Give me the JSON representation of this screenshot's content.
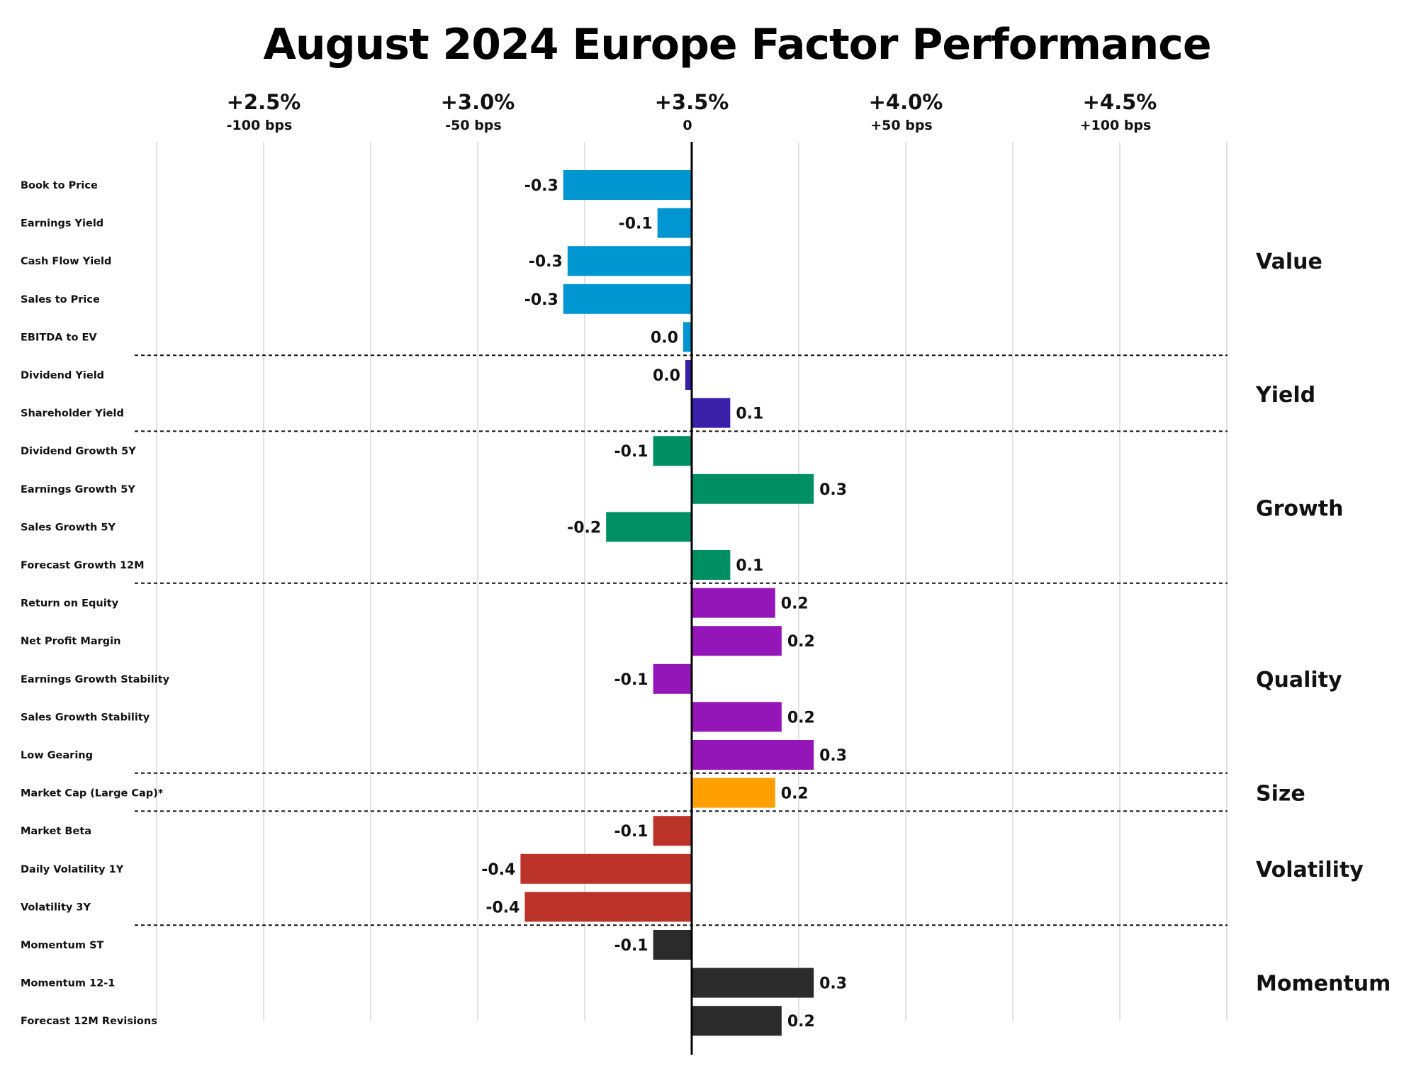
{
  "chart_data": {
    "type": "bar",
    "orientation": "horizontal",
    "title": "August 2024 Europe Factor Performance",
    "baseline": 3.5,
    "xlim": [
      2.25,
      4.75
    ],
    "grid": true,
    "x_ticks": [
      {
        "value": 2.5,
        "label": "+2.5%",
        "sublabel": "-100 bps"
      },
      {
        "value": 3.0,
        "label": "+3.0%",
        "sublabel": "-50 bps"
      },
      {
        "value": 3.5,
        "label": "+3.5%",
        "sublabel": "0"
      },
      {
        "value": 4.0,
        "label": "+4.0%",
        "sublabel": "+50 bps"
      },
      {
        "value": 4.5,
        "label": "+4.5%",
        "sublabel": "+100 bps"
      }
    ],
    "groups": [
      {
        "name": "Value",
        "color": "#0096D2",
        "factors": [
          {
            "label": "Book to Price",
            "value": -0.3,
            "value_label": "-0.3"
          },
          {
            "label": "Earnings Yield",
            "value": -0.08,
            "value_label": "-0.1"
          },
          {
            "label": "Cash Flow Yield",
            "value": -0.29,
            "value_label": "-0.3"
          },
          {
            "label": "Sales to Price",
            "value": -0.3,
            "value_label": "-0.3"
          },
          {
            "label": "EBITDA to EV",
            "value": -0.02,
            "value_label": "0.0"
          }
        ]
      },
      {
        "name": "Yield",
        "color": "#3A1FA8",
        "factors": [
          {
            "label": "Dividend Yield",
            "value": -0.015,
            "value_label": "0.0"
          },
          {
            "label": "Shareholder Yield",
            "value": 0.09,
            "value_label": "0.1"
          }
        ]
      },
      {
        "name": "Growth",
        "color": "#008F63",
        "factors": [
          {
            "label": "Dividend Growth 5Y",
            "value": -0.09,
            "value_label": "-0.1"
          },
          {
            "label": "Earnings Growth 5Y",
            "value": 0.285,
            "value_label": "0.3"
          },
          {
            "label": "Sales Growth 5Y",
            "value": -0.2,
            "value_label": "-0.2"
          },
          {
            "label": "Forecast Growth 12M",
            "value": 0.09,
            "value_label": "0.1"
          }
        ]
      },
      {
        "name": "Quality",
        "color": "#9516B8",
        "factors": [
          {
            "label": "Return on Equity",
            "value": 0.195,
            "value_label": "0.2"
          },
          {
            "label": "Net Profit Margin",
            "value": 0.21,
            "value_label": "0.2"
          },
          {
            "label": "Earnings Growth Stability",
            "value": -0.09,
            "value_label": "-0.1"
          },
          {
            "label": "Sales Growth Stability",
            "value": 0.21,
            "value_label": "0.2"
          },
          {
            "label": "Low Gearing",
            "value": 0.285,
            "value_label": "0.3"
          }
        ]
      },
      {
        "name": "Size",
        "color": "#FFA000",
        "factors": [
          {
            "label": "Market Cap (Large Cap)*",
            "value": 0.195,
            "value_label": "0.2"
          }
        ]
      },
      {
        "name": "Volatility",
        "color": "#BA3228",
        "factors": [
          {
            "label": "Market Beta",
            "value": -0.09,
            "value_label": "-0.1"
          },
          {
            "label": "Daily Volatility 1Y",
            "value": -0.4,
            "value_label": "-0.4"
          },
          {
            "label": "Volatility 3Y",
            "value": -0.39,
            "value_label": "-0.4"
          }
        ]
      },
      {
        "name": "Momentum",
        "color": "#2B2B2B",
        "factors": [
          {
            "label": "Momentum ST",
            "value": -0.09,
            "value_label": "-0.1"
          },
          {
            "label": "Momentum 12-1",
            "value": 0.285,
            "value_label": "0.3"
          },
          {
            "label": "Forecast 12M Revisions",
            "value": 0.21,
            "value_label": "0.2"
          }
        ]
      }
    ]
  }
}
